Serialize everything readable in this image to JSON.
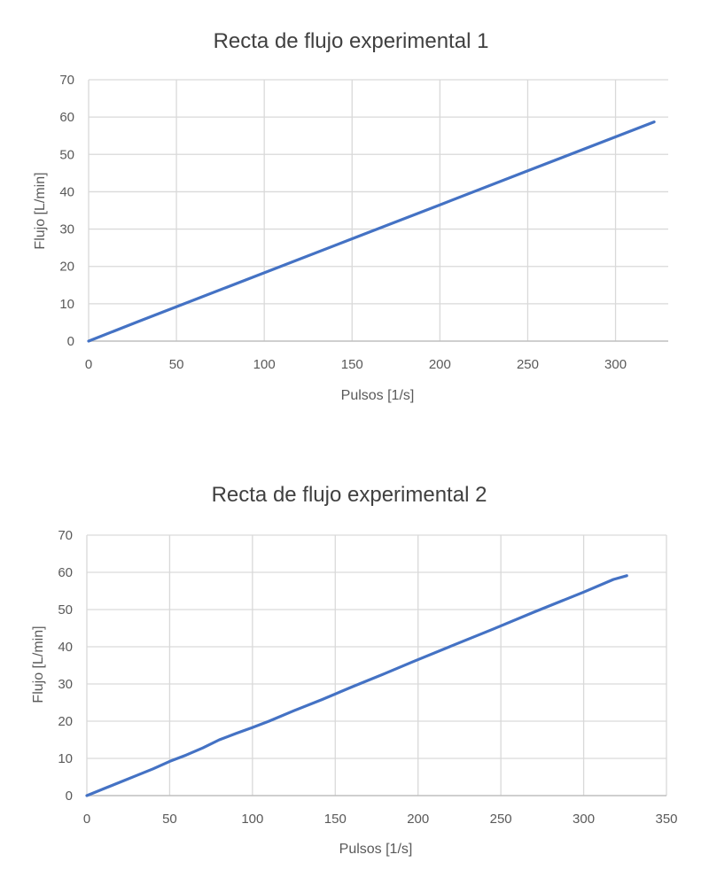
{
  "chart_data": [
    {
      "type": "line",
      "title": "Recta de flujo experimental 1",
      "xlabel": "Pulsos [1/s]",
      "ylabel": "Flujo [L/min]",
      "xlim": [
        0,
        330
      ],
      "ylim": [
        0,
        70
      ],
      "xticks": [
        "0",
        "50",
        "100",
        "150",
        "200",
        "250",
        "300"
      ],
      "yticks": [
        "0",
        "10",
        "20",
        "30",
        "40",
        "50",
        "60",
        "70"
      ],
      "grid": true,
      "color": "#4472C4",
      "series": [
        {
          "x": [
            0,
            28,
            62,
            100,
            150,
            200,
            250,
            300,
            322
          ],
          "y": [
            0,
            5.2,
            11.4,
            18.3,
            27.4,
            36.5,
            45.6,
            54.7,
            58.7
          ]
        }
      ]
    },
    {
      "type": "line",
      "title": "Recta de flujo experimental 2",
      "xlabel": "Pulsos [1/s]",
      "ylabel": "Flujo [L/min]",
      "xlim": [
        0,
        350
      ],
      "ylim": [
        0,
        70
      ],
      "xticks": [
        "0",
        "50",
        "100",
        "150",
        "200",
        "250",
        "300",
        "350"
      ],
      "yticks": [
        "0",
        "10",
        "20",
        "30",
        "40",
        "50",
        "60",
        "70"
      ],
      "grid": true,
      "color": "#4472C4",
      "series": [
        {
          "x": [
            0,
            10,
            20,
            30,
            40,
            50,
            60,
            70,
            80,
            90,
            100,
            110,
            125,
            142,
            160,
            180,
            197,
            220,
            245,
            270,
            300,
            318,
            326
          ],
          "y": [
            0,
            1.8,
            3.6,
            5.4,
            7.2,
            9.2,
            10.9,
            12.8,
            15.0,
            16.7,
            18.3,
            20.0,
            22.8,
            25.8,
            29.2,
            32.8,
            36.0,
            40.2,
            44.7,
            49.3,
            54.7,
            58.1,
            59.1
          ]
        }
      ]
    }
  ]
}
